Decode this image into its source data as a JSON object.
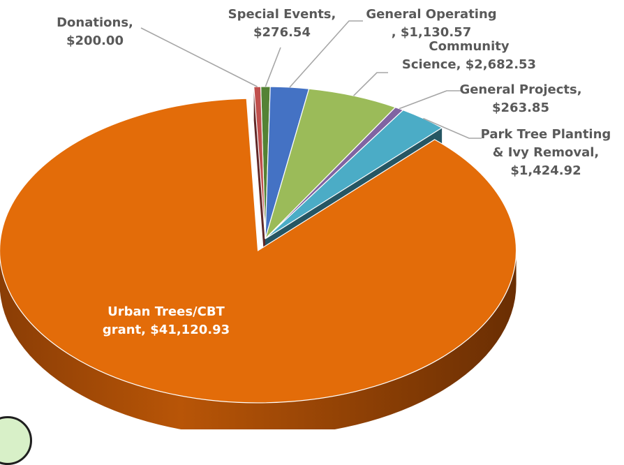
{
  "chart_data": {
    "type": "pie",
    "title": "",
    "slices": [
      {
        "label": "Special Events",
        "value": 276.54,
        "value_label": "$276.54",
        "color": "#548235",
        "label_lines": [
          "Special Events,",
          "$276.54"
        ]
      },
      {
        "label": "General Operating",
        "value": 1130.57,
        "value_label": "$1,130.57",
        "color": "#4472c4",
        "label_lines": [
          "General Operating",
          ", $1,130.57"
        ]
      },
      {
        "label": "Community Science",
        "value": 2682.53,
        "value_label": "$2,682.53",
        "color": "#9bbb59",
        "label_lines": [
          "Community",
          "Science, $2,682.53"
        ]
      },
      {
        "label": "General Projects",
        "value": 263.85,
        "value_label": "$263.85",
        "color": "#8064a2",
        "label_lines": [
          "General Projects,",
          "$263.85"
        ]
      },
      {
        "label": "Park Tree Planting & Ivy Removal",
        "value": 1424.92,
        "value_label": "$1,424.92",
        "color": "#4bacc6",
        "label_lines": [
          "Park Tree Planting",
          "& Ivy Removal,",
          "$1,424.92"
        ]
      },
      {
        "label": "Urban Trees/CBT grant",
        "value": 41120.93,
        "value_label": "$41,120.93",
        "color": "#e36c09",
        "label_lines": [
          "Urban Trees/CBT",
          "grant, $41,120.93"
        ],
        "exploded": true
      },
      {
        "label": "Donations",
        "value": 200.0,
        "value_label": "$200.00",
        "color": "#c0504d",
        "label_lines": [
          "Donations,",
          "$200.00"
        ]
      }
    ],
    "legend": "none",
    "style": "3d-exploded-pie"
  }
}
